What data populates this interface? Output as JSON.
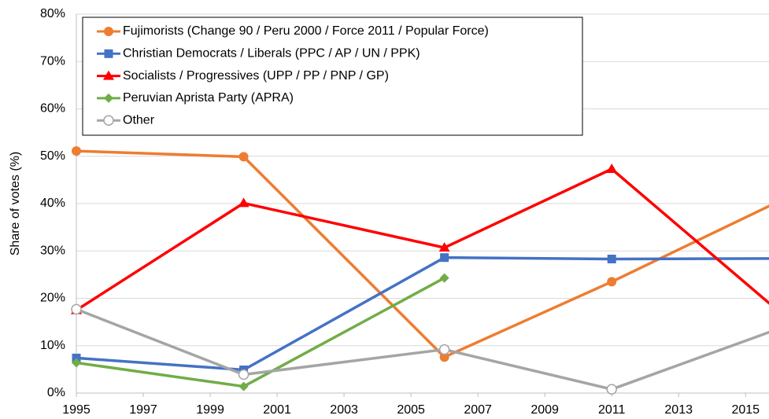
{
  "chart_data": {
    "type": "line",
    "y_label": "Share of votes (%)",
    "x": [
      1995,
      2000,
      2006,
      2011,
      2016
    ],
    "xlim": [
      1995,
      2015.7
    ],
    "xticks": [
      1995,
      1997,
      1999,
      2001,
      2003,
      2005,
      2007,
      2009,
      2011,
      2013,
      2015
    ],
    "ylim": [
      0,
      80
    ],
    "yticks": [
      {
        "value": 0,
        "label": "0%"
      },
      {
        "value": 10,
        "label": "10%"
      },
      {
        "value": 20,
        "label": "20%"
      },
      {
        "value": 30,
        "label": "30%"
      },
      {
        "value": 40,
        "label": "40%"
      },
      {
        "value": 50,
        "label": "50%"
      },
      {
        "value": 60,
        "label": "60%"
      },
      {
        "value": 70,
        "label": "70%"
      },
      {
        "value": 80,
        "label": "80%"
      }
    ],
    "grid": true,
    "legend": "top-left",
    "series": [
      {
        "name": "Fujimorists (Change 90 / Peru 2000 / Force 2011 / Popular Force)",
        "color": "#ed7d31",
        "marker": "circle",
        "values": [
          51.1,
          49.9,
          7.6,
          23.5,
          40.5
        ]
      },
      {
        "name": "Christian Democrats / Liberals (PPC / AP / UN / PPK)",
        "color": "#4472c4",
        "marker": "square",
        "values": [
          7.4,
          4.9,
          28.6,
          28.3,
          28.4
        ]
      },
      {
        "name": "Socialists / Progressives (UPP / PP / PNP / GP)",
        "color": "#ff0000",
        "marker": "triangle",
        "values": [
          17.5,
          40.1,
          30.7,
          47.3,
          17.2
        ]
      },
      {
        "name": "Peruvian Aprista Party (APRA)",
        "color": "#70ad47",
        "marker": "diamond",
        "values": [
          6.4,
          1.4,
          24.3,
          null,
          null
        ]
      },
      {
        "name": "Other",
        "color": "#a5a5a5",
        "marker": "open-circle",
        "values": [
          17.7,
          3.9,
          9.2,
          0.8,
          13.6
        ]
      }
    ]
  }
}
